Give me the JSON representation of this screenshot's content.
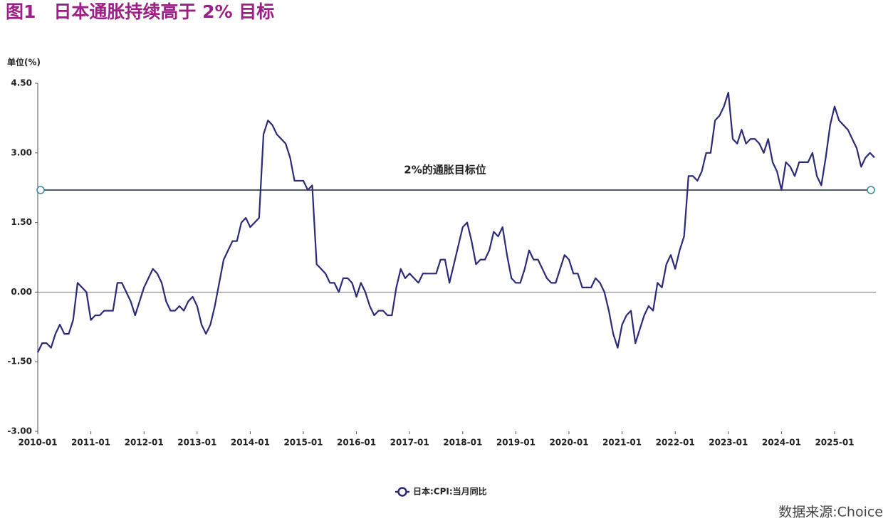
{
  "title": "图1　日本通胀持续高于 2% 目标",
  "source": "数据来源:Choice",
  "chart_data": {
    "type": "line",
    "y_unit_label": "单位(%)",
    "x": [
      "2010-01",
      "2010-02",
      "2010-03",
      "2010-04",
      "2010-05",
      "2010-06",
      "2010-07",
      "2010-08",
      "2010-09",
      "2010-10",
      "2010-11",
      "2010-12",
      "2011-01",
      "2011-02",
      "2011-03",
      "2011-04",
      "2011-05",
      "2011-06",
      "2011-07",
      "2011-08",
      "2011-09",
      "2011-10",
      "2011-11",
      "2011-12",
      "2012-01",
      "2012-02",
      "2012-03",
      "2012-04",
      "2012-05",
      "2012-06",
      "2012-07",
      "2012-08",
      "2012-09",
      "2012-10",
      "2012-11",
      "2012-12",
      "2013-01",
      "2013-02",
      "2013-03",
      "2013-04",
      "2013-05",
      "2013-06",
      "2013-07",
      "2013-08",
      "2013-09",
      "2013-10",
      "2013-11",
      "2013-12",
      "2014-01",
      "2014-02",
      "2014-03",
      "2014-04",
      "2014-05",
      "2014-06",
      "2014-07",
      "2014-08",
      "2014-09",
      "2014-10",
      "2014-11",
      "2014-12",
      "2015-01",
      "2015-02",
      "2015-03",
      "2015-04",
      "2015-05",
      "2015-06",
      "2015-07",
      "2015-08",
      "2015-09",
      "2015-10",
      "2015-11",
      "2015-12",
      "2016-01",
      "2016-02",
      "2016-03",
      "2016-04",
      "2016-05",
      "2016-06",
      "2016-07",
      "2016-08",
      "2016-09",
      "2016-10",
      "2016-11",
      "2016-12",
      "2017-01",
      "2017-02",
      "2017-03",
      "2017-04",
      "2017-05",
      "2017-06",
      "2017-07",
      "2017-08",
      "2017-09",
      "2017-10",
      "2017-11",
      "2017-12",
      "2018-01",
      "2018-02",
      "2018-03",
      "2018-04",
      "2018-05",
      "2018-06",
      "2018-07",
      "2018-08",
      "2018-09",
      "2018-10",
      "2018-11",
      "2018-12",
      "2019-01",
      "2019-02",
      "2019-03",
      "2019-04",
      "2019-05",
      "2019-06",
      "2019-07",
      "2019-08",
      "2019-09",
      "2019-10",
      "2019-11",
      "2019-12",
      "2020-01",
      "2020-02",
      "2020-03",
      "2020-04",
      "2020-05",
      "2020-06",
      "2020-07",
      "2020-08",
      "2020-09",
      "2020-10",
      "2020-11",
      "2020-12",
      "2021-01",
      "2021-02",
      "2021-03",
      "2021-04",
      "2021-05",
      "2021-06",
      "2021-07",
      "2021-08",
      "2021-09",
      "2021-10",
      "2021-11",
      "2021-12",
      "2022-01",
      "2022-02",
      "2022-03",
      "2022-04",
      "2022-05",
      "2022-06",
      "2022-07",
      "2022-08",
      "2022-09",
      "2022-10",
      "2022-11",
      "2022-12",
      "2023-01",
      "2023-02",
      "2023-03",
      "2023-04",
      "2023-05",
      "2023-06",
      "2023-07",
      "2023-08",
      "2023-09",
      "2023-10",
      "2023-11",
      "2023-12",
      "2024-01",
      "2024-02",
      "2024-03",
      "2024-04",
      "2024-05",
      "2024-06",
      "2024-07",
      "2024-08",
      "2024-09",
      "2024-10",
      "2024-11",
      "2024-12",
      "2025-01",
      "2025-02",
      "2025-03",
      "2025-04",
      "2025-05",
      "2025-06",
      "2025-07",
      "2025-08",
      "2025-09",
      "2025-10"
    ],
    "series": [
      {
        "name": "日本:CPI:当月同比",
        "color": "#2b2a78",
        "values": [
          -1.3,
          -1.1,
          -1.1,
          -1.2,
          -0.9,
          -0.7,
          -0.9,
          -0.9,
          -0.6,
          0.2,
          0.1,
          0.0,
          -0.6,
          -0.5,
          -0.5,
          -0.4,
          -0.4,
          -0.4,
          0.2,
          0.2,
          0.0,
          -0.2,
          -0.5,
          -0.2,
          0.1,
          0.3,
          0.5,
          0.4,
          0.2,
          -0.2,
          -0.4,
          -0.4,
          -0.3,
          -0.4,
          -0.2,
          -0.1,
          -0.3,
          -0.7,
          -0.9,
          -0.7,
          -0.3,
          0.2,
          0.7,
          0.9,
          1.1,
          1.1,
          1.5,
          1.6,
          1.4,
          1.5,
          1.6,
          3.4,
          3.7,
          3.6,
          3.4,
          3.3,
          3.2,
          2.9,
          2.4,
          2.4,
          2.4,
          2.2,
          2.3,
          0.6,
          0.5,
          0.4,
          0.2,
          0.2,
          0.0,
          0.3,
          0.3,
          0.2,
          -0.1,
          0.2,
          0.0,
          -0.3,
          -0.5,
          -0.4,
          -0.4,
          -0.5,
          -0.5,
          0.1,
          0.5,
          0.3,
          0.4,
          0.3,
          0.2,
          0.4,
          0.4,
          0.4,
          0.4,
          0.7,
          0.7,
          0.2,
          0.6,
          1.0,
          1.4,
          1.5,
          1.1,
          0.6,
          0.7,
          0.7,
          0.9,
          1.3,
          1.2,
          1.4,
          0.8,
          0.3,
          0.2,
          0.2,
          0.5,
          0.9,
          0.7,
          0.7,
          0.5,
          0.3,
          0.2,
          0.2,
          0.5,
          0.8,
          0.7,
          0.4,
          0.4,
          0.1,
          0.1,
          0.1,
          0.3,
          0.2,
          0.0,
          -0.4,
          -0.9,
          -1.2,
          -0.7,
          -0.5,
          -0.4,
          -1.1,
          -0.8,
          -0.5,
          -0.3,
          -0.4,
          0.2,
          0.1,
          0.6,
          0.8,
          0.5,
          0.9,
          1.2,
          2.5,
          2.5,
          2.4,
          2.6,
          3.0,
          3.0,
          3.7,
          3.8,
          4.0,
          4.3,
          3.3,
          3.2,
          3.5,
          3.2,
          3.3,
          3.3,
          3.2,
          3.0,
          3.3,
          2.8,
          2.6,
          2.2,
          2.8,
          2.7,
          2.5,
          2.8,
          2.8,
          2.8,
          3.0,
          2.5,
          2.3,
          2.9,
          3.6,
          4.0,
          3.7,
          3.6,
          3.5,
          3.3,
          3.1,
          2.7,
          2.9,
          3.0,
          2.9
        ]
      }
    ],
    "xticks": [
      "2010-01",
      "2011-01",
      "2012-01",
      "2013-01",
      "2014-01",
      "2015-01",
      "2016-01",
      "2017-01",
      "2018-01",
      "2019-01",
      "2020-01",
      "2021-01",
      "2022-01",
      "2023-01",
      "2024-01",
      "2025-01"
    ],
    "ylim": [
      -3,
      4.5
    ],
    "yticks": [
      {
        "value": -3,
        "label": "-3.00"
      },
      {
        "value": -1.5,
        "label": "-1.50"
      },
      {
        "value": 0,
        "label": "0.00"
      },
      {
        "value": 1.5,
        "label": "1.50"
      },
      {
        "value": 3,
        "label": "3.00"
      },
      {
        "value": 4.5,
        "label": "4.50"
      }
    ],
    "target_line": {
      "value": 2.2,
      "label": "2%的通胀目标位",
      "color": "#4d5b6b"
    },
    "legend": "bottom"
  }
}
